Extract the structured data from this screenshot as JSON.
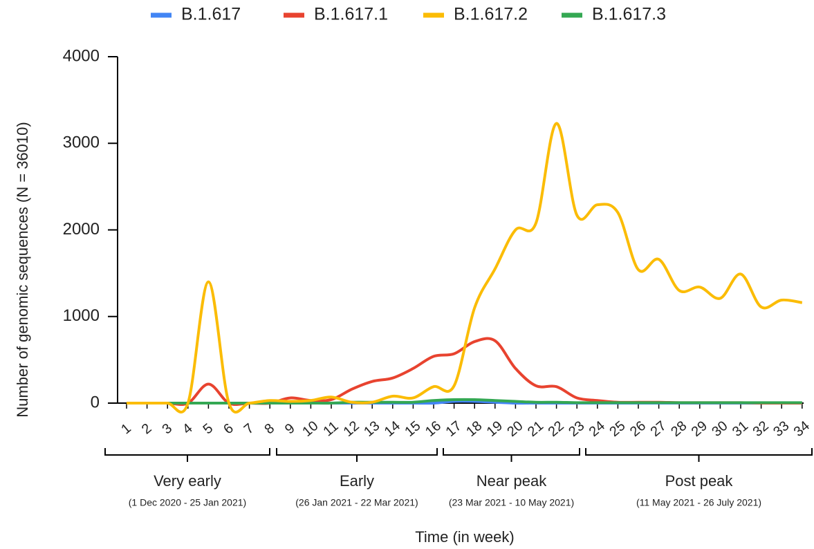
{
  "chart_data": {
    "type": "line",
    "y_label": "Number of genomic sequences (N = 36010)",
    "x_label": "Time (in week)",
    "categories": [
      "1",
      "2",
      "3",
      "4",
      "5",
      "6",
      "7",
      "8",
      "9",
      "10",
      "11",
      "12",
      "13",
      "14",
      "15",
      "16",
      "17",
      "18",
      "19",
      "20",
      "21",
      "22",
      "23",
      "24",
      "25",
      "26",
      "27",
      "28",
      "29",
      "30",
      "31",
      "32",
      "33",
      "34"
    ],
    "series": [
      {
        "name": "B.1.617",
        "color": "#4285f4",
        "values": [
          0,
          0,
          0,
          0,
          0,
          0,
          0,
          0,
          0,
          0,
          0,
          0,
          0,
          0,
          0,
          0,
          20,
          20,
          10,
          0,
          0,
          0,
          0,
          0,
          0,
          0,
          0,
          0,
          0,
          0,
          0,
          0,
          0,
          0
        ]
      },
      {
        "name": "B.1.617.1",
        "color": "#e8432f",
        "values": [
          0,
          0,
          0,
          0,
          220,
          0,
          0,
          0,
          60,
          30,
          40,
          160,
          250,
          290,
          400,
          540,
          570,
          710,
          720,
          400,
          200,
          190,
          60,
          30,
          10,
          10,
          10,
          5,
          5,
          5,
          5,
          0,
          0,
          0
        ]
      },
      {
        "name": "B.1.617.2",
        "color": "#fbbc05",
        "values": [
          0,
          0,
          0,
          0,
          1400,
          0,
          0,
          30,
          20,
          30,
          70,
          10,
          10,
          80,
          60,
          190,
          200,
          1100,
          1550,
          2000,
          2080,
          3230,
          2170,
          2290,
          2200,
          1540,
          1660,
          1300,
          1340,
          1210,
          1490,
          1110,
          1190,
          1160
        ]
      },
      {
        "name": "B.1.617.3",
        "color": "#34a853",
        "values": [
          0,
          0,
          0,
          0,
          0,
          0,
          0,
          0,
          0,
          0,
          0,
          10,
          10,
          10,
          10,
          30,
          40,
          40,
          30,
          20,
          10,
          10,
          5,
          5,
          5,
          5,
          5,
          5,
          5,
          5,
          5,
          5,
          5,
          5
        ]
      }
    ],
    "ylim": [
      0,
      4000
    ],
    "yticks": [
      0,
      1000,
      2000,
      3000,
      4000
    ],
    "groups": [
      {
        "label": "Very early",
        "period": "(1 Dec 2020 - 25 Jan 2021)"
      },
      {
        "label": "Early",
        "period": "(26 Jan 2021 - 22 Mar 2021)"
      },
      {
        "label": "Near peak",
        "period": "(23 Mar 2021 - 10 May 2021)"
      },
      {
        "label": "Post peak",
        "period": "(11 May 2021 - 26 July 2021)"
      }
    ]
  }
}
